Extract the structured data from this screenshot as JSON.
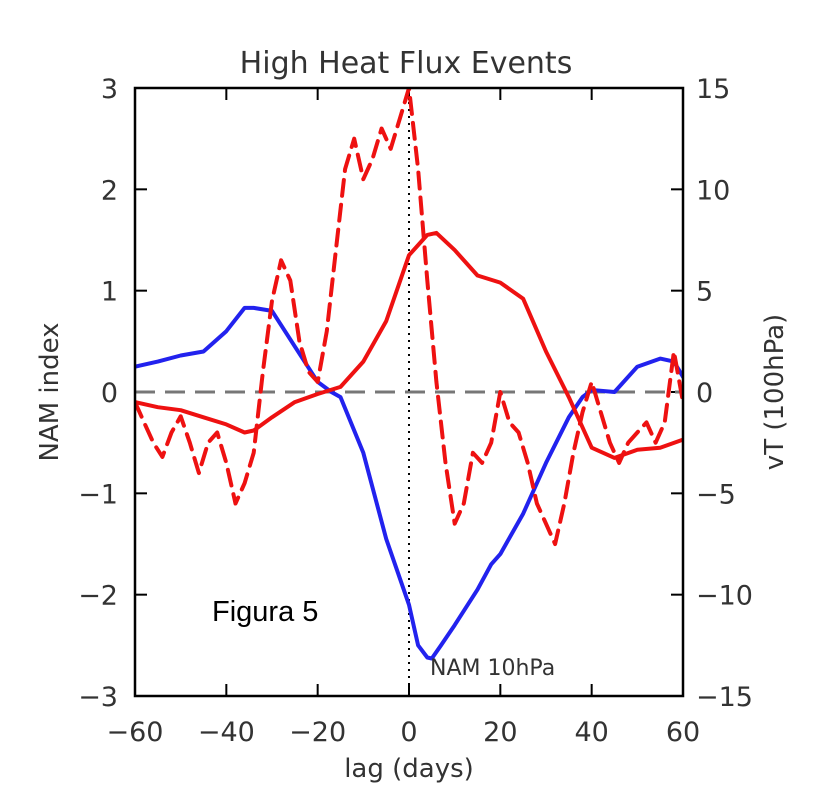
{
  "chart_data": {
    "type": "line",
    "title": "High Heat Flux Events",
    "xlabel": "lag (days)",
    "ylabel_left": "NAM index",
    "ylabel_right": "vT (100hPa)",
    "xlim": [
      -60,
      60
    ],
    "ylim_left": [
      -3,
      3
    ],
    "ylim_right": [
      -15,
      15
    ],
    "x_ticks": [
      -60,
      -40,
      -20,
      0,
      20,
      40,
      60
    ],
    "x_tick_labels": [
      "−60",
      "−40",
      "−20",
      "0",
      "20",
      "40",
      "60"
    ],
    "y_left_ticks": [
      -3,
      -2,
      -1,
      0,
      1,
      2,
      3
    ],
    "y_left_tick_labels": [
      "−3",
      "−2",
      "−1",
      "0",
      "1",
      "2",
      "3"
    ],
    "y_right_ticks": [
      -15,
      -10,
      -5,
      0,
      5,
      10,
      15
    ],
    "y_right_tick_labels": [
      "−15",
      "−10",
      "−5",
      "0",
      "5",
      "10",
      "15"
    ],
    "zero_line": {
      "axis": "left",
      "y": 0,
      "style": "dashed",
      "color": "#777777"
    },
    "vline": {
      "x": 0,
      "style": "dotted",
      "color": "#000000"
    },
    "annotations": {
      "figure_label": "Figura 5",
      "curve_label": "NAM 10hPa"
    },
    "series": [
      {
        "axis": "left",
        "color": "#2222ee",
        "style": "solid",
        "x": [
          -60,
          -55,
          -50,
          -45,
          -40,
          -36,
          -34,
          -30,
          -25,
          -20,
          -17,
          -15,
          -10,
          -5,
          0,
          2,
          4,
          5,
          7,
          10,
          15,
          18,
          20,
          25,
          30,
          35,
          38,
          40,
          45,
          50,
          55,
          58,
          60
        ],
        "y": [
          0.25,
          0.3,
          0.36,
          0.4,
          0.6,
          0.83,
          0.83,
          0.8,
          0.45,
          0.1,
          0.0,
          -0.05,
          -0.6,
          -1.45,
          -2.1,
          -2.5,
          -2.62,
          -2.63,
          -2.5,
          -2.3,
          -1.95,
          -1.7,
          -1.6,
          -1.2,
          -0.7,
          -0.25,
          -0.05,
          0.02,
          0.0,
          0.25,
          0.33,
          0.3,
          0.15
        ]
      },
      {
        "axis": "left",
        "color": "#ee1111",
        "style": "solid",
        "x": [
          -60,
          -55,
          -50,
          -45,
          -40,
          -36,
          -34,
          -30,
          -25,
          -20,
          -15,
          -10,
          -5,
          0,
          2,
          4,
          6,
          10,
          15,
          20,
          25,
          30,
          35,
          40,
          45,
          50,
          55,
          60
        ],
        "y": [
          -0.1,
          -0.15,
          -0.18,
          -0.25,
          -0.32,
          -0.4,
          -0.38,
          -0.25,
          -0.1,
          -0.02,
          0.05,
          0.3,
          0.7,
          1.35,
          1.45,
          1.55,
          1.57,
          1.4,
          1.15,
          1.08,
          0.92,
          0.4,
          -0.05,
          -0.55,
          -0.65,
          -0.57,
          -0.55,
          -0.47
        ]
      },
      {
        "axis": "right",
        "color": "#ee1111",
        "style": "dashed",
        "x": [
          -60,
          -58,
          -56,
          -54,
          -52,
          -50,
          -48,
          -46,
          -44,
          -42,
          -40,
          -38,
          -36,
          -34,
          -32,
          -30,
          -28,
          -26,
          -24,
          -22,
          -20,
          -18,
          -16,
          -14,
          -12,
          -10,
          -8,
          -6,
          -4,
          -2,
          0,
          2,
          4,
          6,
          8,
          10,
          12,
          14,
          16,
          18,
          20,
          22,
          24,
          26,
          28,
          30,
          32,
          34,
          36,
          38,
          40,
          42,
          44,
          46,
          48,
          50,
          52,
          54,
          56,
          58,
          60
        ],
        "y": [
          -0.5,
          -1.5,
          -2.5,
          -3.2,
          -2.0,
          -1.2,
          -2.5,
          -4.0,
          -2.5,
          -2.0,
          -3.5,
          -5.5,
          -4.5,
          -3.0,
          1.0,
          4.5,
          6.5,
          5.5,
          2.5,
          1.0,
          0.5,
          3.0,
          7.0,
          11.0,
          12.5,
          10.5,
          11.5,
          13.0,
          12.0,
          13.5,
          15.0,
          11.0,
          5.5,
          0.5,
          -3.5,
          -6.5,
          -5.5,
          -3.0,
          -3.5,
          -2.5,
          0.0,
          -1.5,
          -2.0,
          -3.5,
          -5.5,
          -6.5,
          -7.5,
          -5.5,
          -3.0,
          -1.0,
          0.5,
          -1.0,
          -2.5,
          -3.5,
          -2.5,
          -2.0,
          -1.5,
          -2.5,
          -1.5,
          2.0,
          -0.5
        ]
      }
    ]
  }
}
